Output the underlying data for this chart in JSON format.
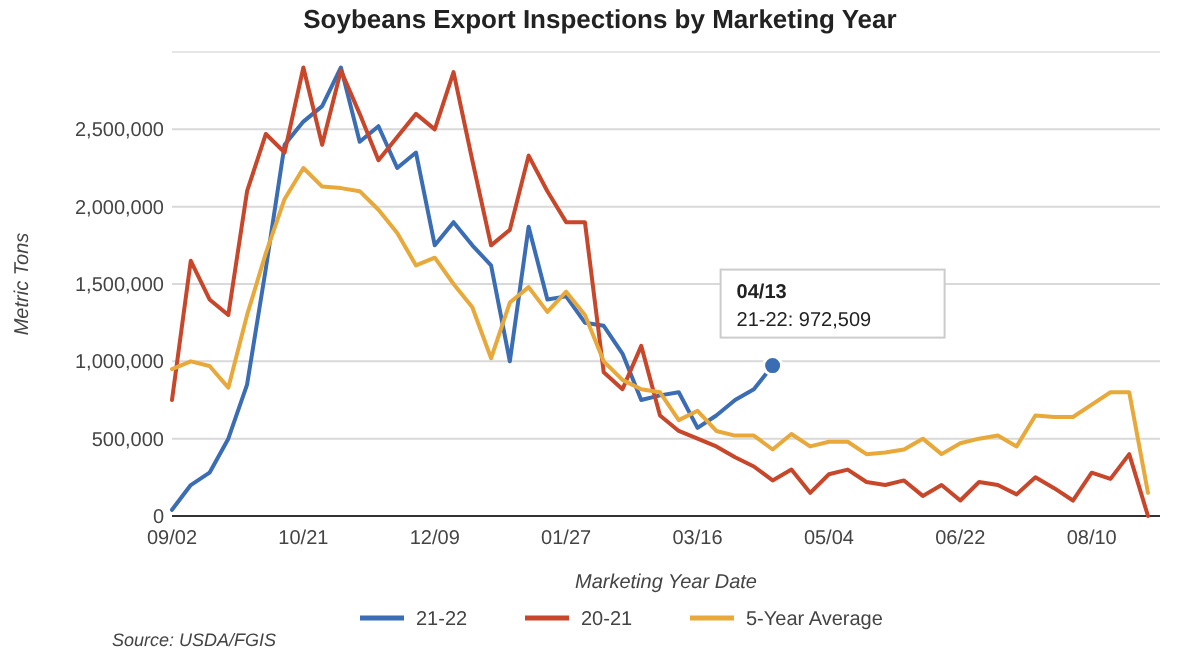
{
  "chart_data": {
    "type": "line",
    "title": "Soybeans Export Inspections by Marketing Year",
    "xlabel": "Marketing Year Date",
    "ylabel": "Metric Tons",
    "categories": [
      "09/02",
      null,
      null,
      null,
      null,
      null,
      null,
      "10/21",
      null,
      null,
      null,
      null,
      null,
      null,
      "12/09",
      null,
      null,
      null,
      null,
      null,
      null,
      "01/27",
      null,
      null,
      null,
      null,
      null,
      null,
      "03/16",
      null,
      null,
      null,
      null,
      null,
      null,
      "05/04",
      null,
      null,
      null,
      null,
      null,
      null,
      "06/22",
      null,
      null,
      null,
      null,
      null,
      null,
      "08/10",
      null,
      null,
      null
    ],
    "series": [
      {
        "name": "21-22",
        "color": "#3b6db5",
        "values": [
          40000,
          200000,
          280000,
          500000,
          850000,
          1600000,
          2400000,
          2550000,
          2650000,
          2900000,
          2420000,
          2520000,
          2250000,
          2350000,
          1750000,
          1900000,
          1750000,
          1620000,
          1000000,
          1870000,
          1400000,
          1420000,
          1250000,
          1230000,
          1050000,
          750000,
          780000,
          800000,
          570000,
          650000,
          750000,
          820000,
          972509,
          null,
          null,
          null,
          null,
          null,
          null,
          null,
          null,
          null,
          null,
          null,
          null,
          null,
          null,
          null,
          null,
          null,
          null,
          null,
          null
        ]
      },
      {
        "name": "20-21",
        "color": "#c8462a",
        "values": [
          750000,
          1650000,
          1400000,
          1300000,
          2100000,
          2470000,
          2350000,
          2900000,
          2400000,
          2880000,
          2600000,
          2300000,
          2450000,
          2600000,
          2500000,
          2870000,
          2300000,
          1750000,
          1850000,
          2330000,
          2100000,
          1900000,
          1900000,
          930000,
          820000,
          1100000,
          650000,
          550000,
          500000,
          450000,
          380000,
          320000,
          230000,
          300000,
          150000,
          270000,
          300000,
          220000,
          200000,
          230000,
          130000,
          200000,
          100000,
          220000,
          200000,
          140000,
          250000,
          180000,
          100000,
          280000,
          240000,
          400000,
          0
        ]
      },
      {
        "name": "5-Year Average",
        "color": "#e8a93a",
        "values": [
          950000,
          1000000,
          970000,
          830000,
          1300000,
          1700000,
          2050000,
          2250000,
          2130000,
          2120000,
          2100000,
          1980000,
          1830000,
          1620000,
          1670000,
          1500000,
          1350000,
          1020000,
          1380000,
          1480000,
          1320000,
          1450000,
          1300000,
          1000000,
          880000,
          820000,
          800000,
          620000,
          680000,
          550000,
          520000,
          520000,
          430000,
          530000,
          450000,
          480000,
          480000,
          400000,
          410000,
          430000,
          500000,
          400000,
          470000,
          500000,
          520000,
          450000,
          650000,
          640000,
          640000,
          720000,
          800000,
          800000,
          150000
        ]
      }
    ],
    "ylim": [
      0,
      3000000
    ],
    "yticks": [
      0,
      {
        "value": 500000,
        "label": "500,000"
      },
      {
        "value": 1000000,
        "label": "1,000,000"
      },
      {
        "value": 1500000,
        "label": "1,500,000"
      },
      {
        "value": 2000000,
        "label": "2,000,000"
      },
      {
        "value": 2500000,
        "label": "2,500,000"
      }
    ],
    "grid": "y",
    "legend": "bottom",
    "marker": "none",
    "line_style": "solid",
    "annotations": [
      "04/13\n21-22: 972,509",
      "Source: USDA/FGIS"
    ]
  }
}
